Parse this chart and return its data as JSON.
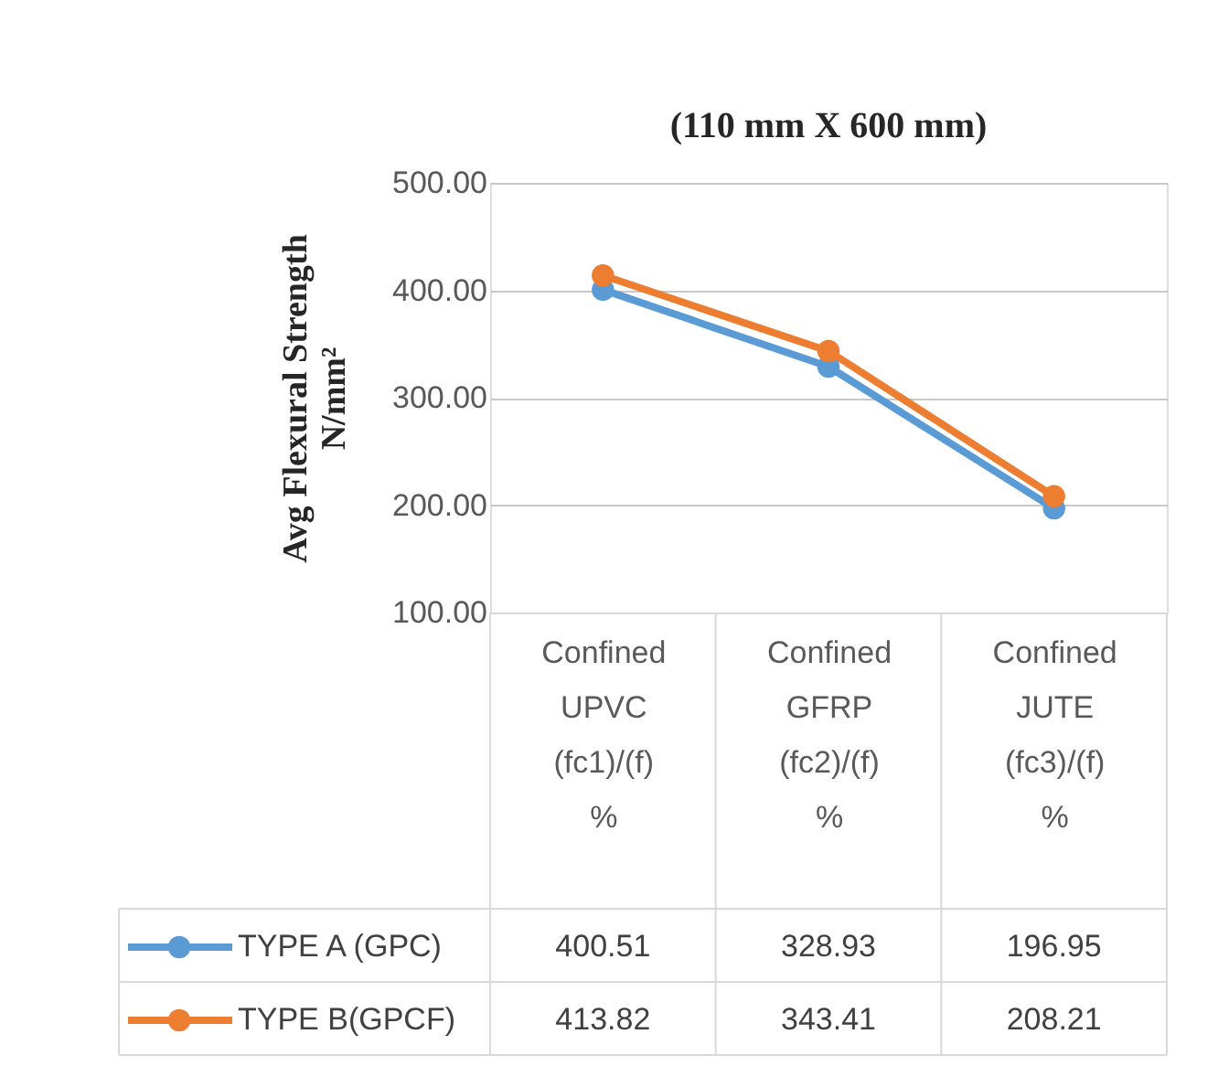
{
  "chart_data": {
    "type": "line",
    "title": "(110 mm X 600 mm)",
    "ylabel": "Avg Flexural Strength N/mm²",
    "categories": [
      "Confined UPVC (fc1)/(f) %",
      "Confined GFRP (fc2)/(f) %",
      "Confined JUTE (fc3)/(f) %"
    ],
    "series": [
      {
        "name": "TYPE A (GPC)",
        "color": "#5b9bd5",
        "values": [
          400.51,
          328.93,
          196.95
        ]
      },
      {
        "name": "TYPE B(GPCF)",
        "color": "#ed7d31",
        "values": [
          413.82,
          343.41,
          208.21
        ]
      }
    ],
    "ylim": [
      100,
      500
    ],
    "yticks": [
      {
        "value": 100,
        "label": "100.00"
      },
      {
        "value": 200,
        "label": "200.00"
      },
      {
        "value": 300,
        "label": "300.00"
      },
      {
        "value": 400,
        "label": "400.00"
      },
      {
        "value": 500,
        "label": "500.00"
      }
    ],
    "grid": "y",
    "marker": "circle",
    "line_style": "solid",
    "data_labels": true,
    "legend": "bottom"
  }
}
